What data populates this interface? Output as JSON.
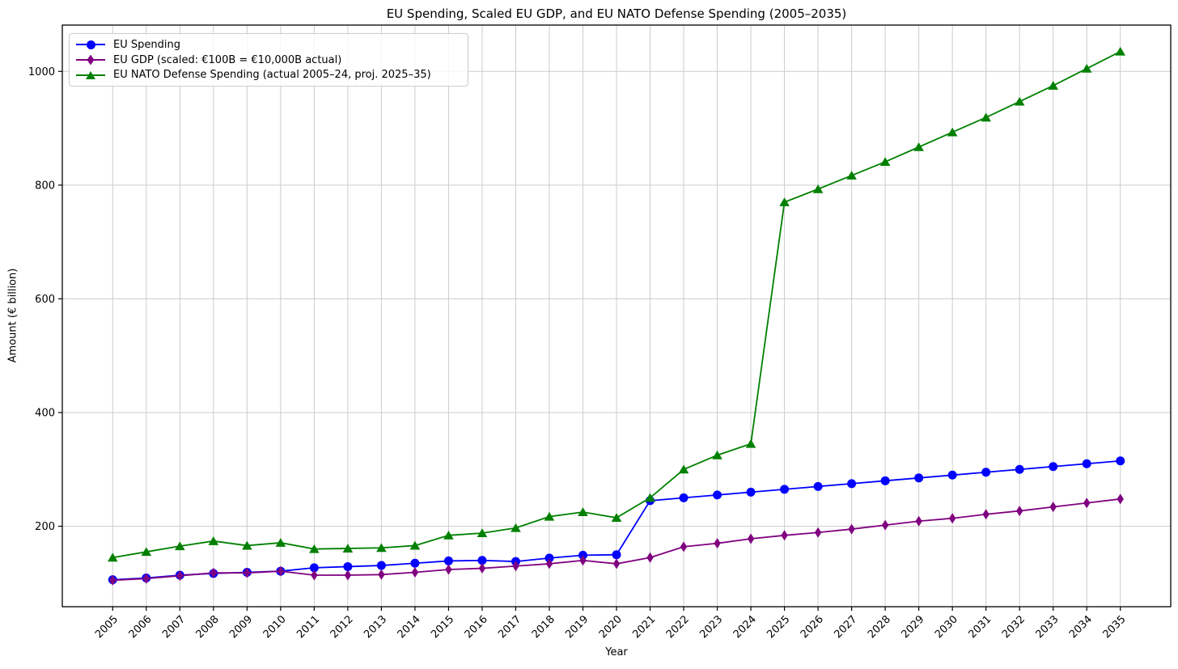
{
  "chart_data": {
    "type": "line",
    "title": "EU Spending, Scaled EU GDP, and EU NATO Defense Spending (2005–2035)",
    "xlabel": "Year",
    "ylabel": "Amount (€ billion)",
    "x": [
      2005,
      2006,
      2007,
      2008,
      2009,
      2010,
      2011,
      2012,
      2013,
      2014,
      2015,
      2016,
      2017,
      2018,
      2019,
      2020,
      2021,
      2022,
      2023,
      2024,
      2025,
      2026,
      2027,
      2028,
      2029,
      2030,
      2031,
      2032,
      2033,
      2034,
      2035
    ],
    "yticks": [
      200,
      400,
      600,
      800,
      1000
    ],
    "xlim": [
      2003.5,
      2036.5
    ],
    "ylim": [
      58.5,
      1081.5
    ],
    "grid": true,
    "grid_color": "#cccccc",
    "legend_position": "upper-left",
    "series": [
      {
        "name": "EU Spending",
        "color": "#0000ff",
        "marker": "circle",
        "values": [
          106,
          109,
          114,
          117,
          119,
          121,
          127,
          129,
          131,
          135,
          139,
          140,
          138,
          144,
          149,
          150,
          245,
          250,
          255,
          260,
          265,
          270,
          275,
          280,
          285,
          290,
          295,
          300,
          305,
          310,
          315
        ]
      },
      {
        "name": "EU GDP (scaled: €100B = €10,000B actual)",
        "color": "#800080",
        "marker": "diamond",
        "values": [
          105,
          108,
          113,
          118,
          118,
          121,
          114,
          114,
          115,
          119,
          124,
          126,
          130,
          134,
          140,
          134,
          145,
          164,
          170,
          178,
          184,
          189,
          195,
          202,
          209,
          214,
          221,
          227,
          234,
          241,
          248
        ]
      },
      {
        "name": "EU NATO Defense Spending (actual 2005–24, proj. 2025–35)",
        "color": "#008000",
        "marker": "triangle",
        "values": [
          145,
          155,
          165,
          174,
          166,
          171,
          160,
          161,
          162,
          166,
          184,
          188,
          197,
          217,
          225,
          215,
          250,
          300,
          325,
          345,
          770,
          793,
          817,
          841,
          867,
          893,
          919,
          947,
          975,
          1005,
          1035
        ]
      }
    ]
  }
}
